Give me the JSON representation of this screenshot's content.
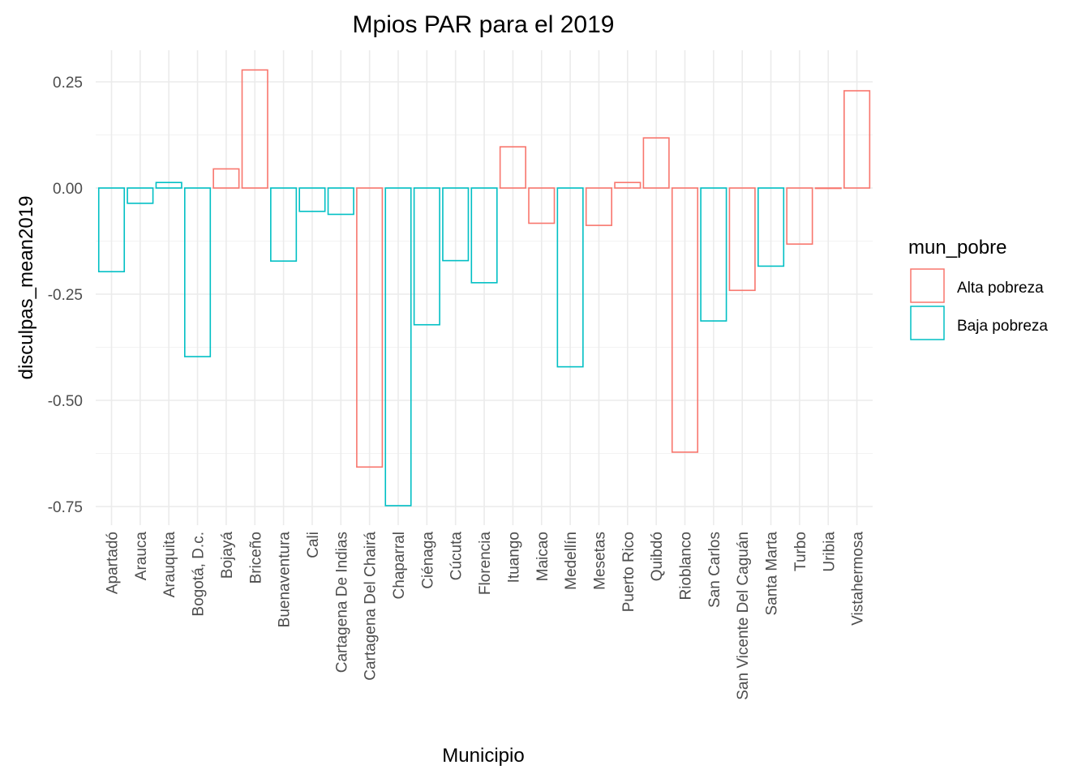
{
  "chart_data": {
    "type": "bar",
    "title": "Mpios PAR para el 2019",
    "xlabel": "Municipio",
    "ylabel": "disculpas_mean2019",
    "ylim": [
      -0.78,
      0.32
    ],
    "yticks": [
      0.25,
      0.0,
      -0.25,
      -0.5,
      -0.75
    ],
    "ytick_labels": [
      "0.25",
      "0.00",
      "-0.25",
      "-0.50",
      "-0.75"
    ],
    "grid": true,
    "legend_position": "right",
    "legend_title": "mun_pobre",
    "series_colors": {
      "Alta pobreza": "#F8766D",
      "Baja pobreza": "#00BFC4"
    },
    "legend": [
      {
        "name": "Alta pobreza",
        "color": "#F8766D"
      },
      {
        "name": "Baja pobreza",
        "color": "#00BFC4"
      }
    ],
    "categories": [
      "Apartadó",
      "Arauca",
      "Arauquita",
      "Bogotá, D.c.",
      "Bojayá",
      "Briceño",
      "Buenaventura",
      "Cali",
      "Cartagena De Indias",
      "Cartagena Del Chairá",
      "Chaparral",
      "Ciénaga",
      "Cúcuta",
      "Florencia",
      "Ituango",
      "Maicao",
      "Medellín",
      "Mesetas",
      "Puerto Rico",
      "Quibdó",
      "Rioblanco",
      "San Carlos",
      "San Vicente Del Caguán",
      "Santa Marta",
      "Turbo",
      "Uribia",
      "Vistahermosa"
    ],
    "values": [
      -0.197,
      -0.036,
      0.013,
      -0.397,
      0.045,
      0.278,
      -0.172,
      -0.055,
      -0.062,
      -0.657,
      -0.748,
      -0.322,
      -0.171,
      -0.223,
      0.097,
      -0.083,
      -0.421,
      -0.088,
      0.013,
      0.118,
      -0.622,
      -0.313,
      -0.241,
      -0.184,
      -0.132,
      0.0,
      0.229
    ],
    "groups": [
      "Baja pobreza",
      "Baja pobreza",
      "Baja pobreza",
      "Baja pobreza",
      "Alta pobreza",
      "Alta pobreza",
      "Baja pobreza",
      "Baja pobreza",
      "Baja pobreza",
      "Alta pobreza",
      "Baja pobreza",
      "Baja pobreza",
      "Baja pobreza",
      "Baja pobreza",
      "Alta pobreza",
      "Alta pobreza",
      "Baja pobreza",
      "Alta pobreza",
      "Alta pobreza",
      "Alta pobreza",
      "Alta pobreza",
      "Baja pobreza",
      "Alta pobreza",
      "Baja pobreza",
      "Alta pobreza",
      "Alta pobreza",
      "Alta pobreza"
    ]
  }
}
